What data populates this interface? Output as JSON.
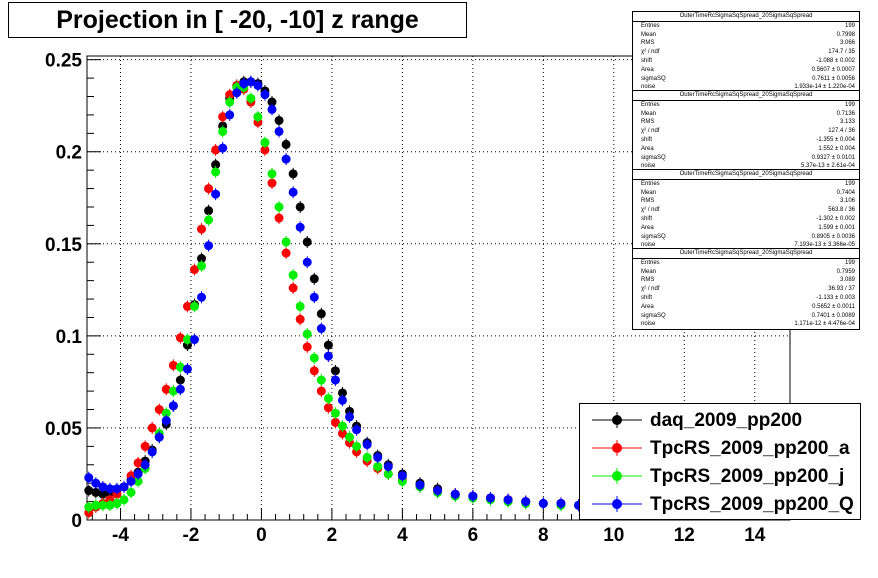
{
  "title": "Projection in [ -20, -10] z range",
  "chart_data": {
    "type": "scatter",
    "xlim": [
      -4.95,
      15
    ],
    "ylim": [
      0,
      0.252
    ],
    "xticks": [
      -4,
      -2,
      0,
      2,
      4,
      6,
      8,
      10,
      12,
      14
    ],
    "xtick_labels": [
      "-4",
      "-2",
      "0",
      "2",
      "4",
      "6",
      "8",
      "10",
      "12",
      "14"
    ],
    "yticks": [
      0,
      0.05,
      0.1,
      0.15,
      0.2,
      0.25
    ],
    "ytick_labels": [
      "0",
      "0.05",
      "0.1",
      "0.15",
      "0.2",
      "0.25"
    ],
    "grid": true,
    "legend_position": "bottom-right",
    "series": [
      {
        "name": "daq_2009_pp200",
        "color": "#000000",
        "x": [
          -4.9,
          -4.7,
          -4.5,
          -4.3,
          -4.1,
          -3.9,
          -3.7,
          -3.5,
          -3.3,
          -3.1,
          -2.9,
          -2.7,
          -2.5,
          -2.3,
          -2.1,
          -1.9,
          -1.7,
          -1.5,
          -1.3,
          -1.1,
          -0.9,
          -0.7,
          -0.5,
          -0.3,
          -0.1,
          0.1,
          0.3,
          0.5,
          0.7,
          0.9,
          1.1,
          1.3,
          1.5,
          1.7,
          1.9,
          2.1,
          2.3,
          2.5,
          2.7,
          3.0,
          3.3,
          3.6,
          4.0,
          4.5,
          5.0,
          5.5,
          6.0,
          6.5,
          7.0,
          7.5,
          8.0,
          8.5,
          9.0
        ],
        "y": [
          0.016,
          0.015,
          0.014,
          0.015,
          0.016,
          0.018,
          0.022,
          0.026,
          0.032,
          0.038,
          0.045,
          0.052,
          0.062,
          0.076,
          0.095,
          0.117,
          0.142,
          0.168,
          0.193,
          0.214,
          0.229,
          0.236,
          0.238,
          0.238,
          0.237,
          0.233,
          0.227,
          0.217,
          0.204,
          0.188,
          0.17,
          0.151,
          0.131,
          0.112,
          0.095,
          0.081,
          0.069,
          0.059,
          0.051,
          0.042,
          0.035,
          0.03,
          0.025,
          0.02,
          0.017,
          0.014,
          0.013,
          0.012,
          0.011,
          0.01,
          0.009,
          0.009,
          0.008
        ]
      },
      {
        "name": "TpcRS_2009_pp200_a",
        "color": "#ff0000",
        "x": [
          -4.9,
          -4.7,
          -4.5,
          -4.3,
          -4.1,
          -3.9,
          -3.7,
          -3.5,
          -3.3,
          -3.1,
          -2.9,
          -2.7,
          -2.5,
          -2.3,
          -2.1,
          -1.9,
          -1.7,
          -1.5,
          -1.3,
          -1.1,
          -0.9,
          -0.7,
          -0.5,
          -0.3,
          -0.1,
          0.1,
          0.3,
          0.5,
          0.7,
          0.9,
          1.1,
          1.3,
          1.5,
          1.7,
          1.9,
          2.1,
          2.3,
          2.5,
          2.7,
          3.0,
          3.3,
          3.6,
          4.0,
          4.5,
          5.0,
          5.5,
          6.0,
          6.5,
          7.0,
          7.5,
          8.0,
          8.5,
          9.0
        ],
        "y": [
          0.004,
          0.007,
          0.009,
          0.011,
          0.014,
          0.018,
          0.024,
          0.031,
          0.04,
          0.05,
          0.06,
          0.071,
          0.084,
          0.099,
          0.116,
          0.136,
          0.158,
          0.18,
          0.201,
          0.219,
          0.231,
          0.236,
          0.234,
          0.227,
          0.216,
          0.201,
          0.183,
          0.164,
          0.145,
          0.126,
          0.109,
          0.094,
          0.081,
          0.07,
          0.061,
          0.053,
          0.047,
          0.042,
          0.037,
          0.032,
          0.028,
          0.025,
          0.022,
          0.018,
          0.016,
          0.014,
          0.013,
          0.012,
          0.011,
          0.01,
          0.009,
          0.009,
          0.008
        ]
      },
      {
        "name": "TpcRS_2009_pp200_j",
        "color": "#00ee00",
        "x": [
          -4.9,
          -4.7,
          -4.5,
          -4.3,
          -4.1,
          -3.9,
          -3.7,
          -3.5,
          -3.3,
          -3.1,
          -2.9,
          -2.7,
          -2.5,
          -2.3,
          -2.1,
          -1.9,
          -1.7,
          -1.5,
          -1.3,
          -1.1,
          -0.9,
          -0.7,
          -0.5,
          -0.3,
          -0.1,
          0.1,
          0.3,
          0.5,
          0.7,
          0.9,
          1.1,
          1.3,
          1.5,
          1.7,
          1.9,
          2.1,
          2.3,
          2.5,
          2.7,
          3.0,
          3.3,
          3.6,
          4.0,
          4.5,
          5.0,
          5.5,
          6.0,
          6.5,
          7.0,
          7.5,
          8.0,
          8.5,
          9.0
        ],
        "y": [
          0.007,
          0.008,
          0.008,
          0.008,
          0.009,
          0.011,
          0.015,
          0.021,
          0.028,
          0.037,
          0.047,
          0.058,
          0.07,
          0.083,
          0.098,
          0.116,
          0.138,
          0.163,
          0.189,
          0.211,
          0.227,
          0.235,
          0.235,
          0.229,
          0.219,
          0.205,
          0.188,
          0.17,
          0.151,
          0.133,
          0.116,
          0.101,
          0.088,
          0.076,
          0.066,
          0.058,
          0.051,
          0.045,
          0.04,
          0.034,
          0.029,
          0.025,
          0.021,
          0.018,
          0.015,
          0.013,
          0.012,
          0.011,
          0.01,
          0.009,
          0.009,
          0.008,
          0.008
        ]
      },
      {
        "name": "TpcRS_2009_pp200_Q",
        "color": "#0000ff",
        "x": [
          -4.9,
          -4.7,
          -4.5,
          -4.3,
          -4.1,
          -3.9,
          -3.7,
          -3.5,
          -3.3,
          -3.1,
          -2.9,
          -2.7,
          -2.5,
          -2.3,
          -2.1,
          -1.9,
          -1.7,
          -1.5,
          -1.3,
          -1.1,
          -0.9,
          -0.7,
          -0.5,
          -0.3,
          -0.1,
          0.1,
          0.3,
          0.5,
          0.7,
          0.9,
          1.1,
          1.3,
          1.5,
          1.7,
          1.9,
          2.1,
          2.3,
          2.5,
          2.7,
          3.0,
          3.3,
          3.6,
          4.0,
          4.5,
          5.0,
          5.5,
          6.0,
          6.5,
          7.0,
          7.5,
          8.0,
          8.5,
          9.0
        ],
        "y": [
          0.023,
          0.02,
          0.018,
          0.017,
          0.017,
          0.018,
          0.021,
          0.025,
          0.03,
          0.037,
          0.045,
          0.054,
          0.062,
          0.071,
          0.082,
          0.098,
          0.121,
          0.149,
          0.177,
          0.202,
          0.22,
          0.232,
          0.237,
          0.238,
          0.236,
          0.231,
          0.223,
          0.211,
          0.196,
          0.178,
          0.159,
          0.14,
          0.121,
          0.104,
          0.089,
          0.076,
          0.065,
          0.056,
          0.049,
          0.041,
          0.034,
          0.029,
          0.024,
          0.019,
          0.016,
          0.014,
          0.013,
          0.012,
          0.011,
          0.01,
          0.009,
          0.009,
          0.008
        ]
      }
    ]
  },
  "stats_boxes": [
    {
      "name": "OuterTimeRcSigmaSqSpread_20SigmaSqSpread",
      "rows": [
        [
          "Entries",
          "199"
        ],
        [
          "Mean",
          "0.7998"
        ],
        [
          "RMS",
          "3.066"
        ],
        [
          "χ² / ndf",
          "174.7 / 35"
        ],
        [
          "shift",
          "-1.088 ± 0.002"
        ],
        [
          "Area",
          "0.5607 ± 0.0007"
        ],
        [
          "sigmaSQ",
          "0.7611 ± 0.0056"
        ],
        [
          "noise",
          "1.933e-14 ± 1.220e-04"
        ]
      ]
    },
    {
      "name": "OuterTimeRcSigmaSqSpread_20SigmaSqSpread",
      "rows": [
        [
          "Entries",
          "199"
        ],
        [
          "Mean",
          "0.7136"
        ],
        [
          "RMS",
          "3.133"
        ],
        [
          "χ² / ndf",
          "127.4 / 36"
        ],
        [
          "shift",
          "-1.355 ± 0.004"
        ],
        [
          "Area",
          "1.552 ± 0.004"
        ],
        [
          "sigmaSQ",
          "0.9327 ± 0.0101"
        ],
        [
          "noise",
          "5.37e-13 ± 2.61e-04"
        ]
      ]
    },
    {
      "name": "OuterTimeRcSigmaSqSpread_20SigmaSqSpread",
      "rows": [
        [
          "Entries",
          "199"
        ],
        [
          "Mean",
          "0.7404"
        ],
        [
          "RMS",
          "3.106"
        ],
        [
          "χ² / ndf",
          "563.8 / 36"
        ],
        [
          "shift",
          "-1.302 ± 0.002"
        ],
        [
          "Area",
          "1.599 ± 0.001"
        ],
        [
          "sigmaSQ",
          "0.8905 ± 0.0036"
        ],
        [
          "noise",
          "7.193e-13 ± 3.366e-05"
        ]
      ]
    },
    {
      "name": "OuterTimeRcSigmaSqSpread_20SigmaSqSpread",
      "rows": [
        [
          "Entries",
          "199"
        ],
        [
          "Mean",
          "0.7959"
        ],
        [
          "RMS",
          "3.089"
        ],
        [
          "χ² / ndf",
          "36.93 / 37"
        ],
        [
          "shift",
          "-1.133 ± 0.003"
        ],
        [
          "Area",
          "0.5652 ± 0.0011"
        ],
        [
          "sigmaSQ",
          "0.7401 ± 0.0089"
        ],
        [
          "noise",
          "1.171e-12 ± 4.476e-04"
        ]
      ]
    }
  ],
  "legend": [
    {
      "label": "daq_2009_pp200",
      "color": "#000000"
    },
    {
      "label": "TpcRS_2009_pp200_a",
      "color": "#ff0000"
    },
    {
      "label": "TpcRS_2009_pp200_j",
      "color": "#00ee00"
    },
    {
      "label": "TpcRS_2009_pp200_Q",
      "color": "#0000ff"
    }
  ]
}
